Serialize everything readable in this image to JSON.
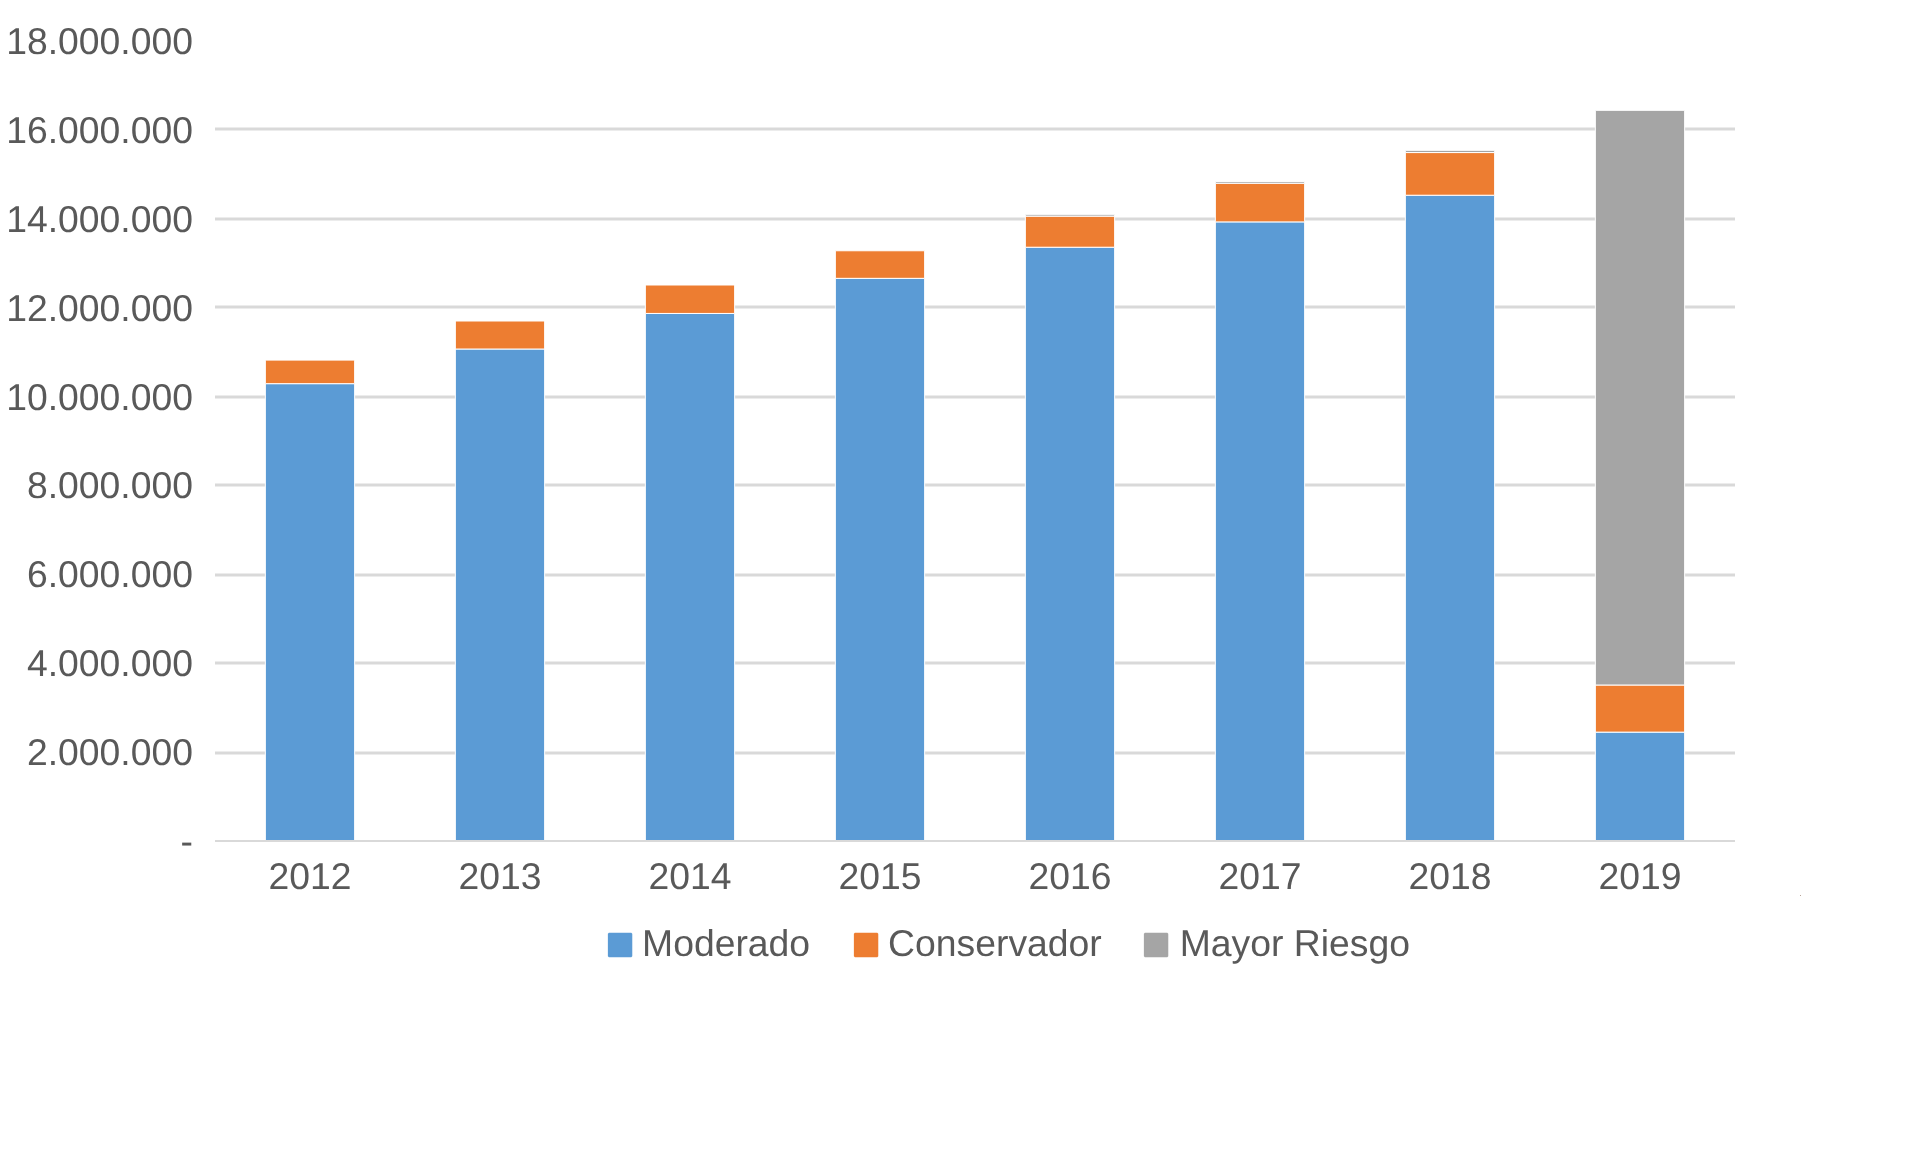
{
  "chart_data": {
    "type": "bar",
    "stacked": true,
    "categories": [
      "2012",
      "2013",
      "2014",
      "2015",
      "2016",
      "2017",
      "2018",
      "2019"
    ],
    "series": [
      {
        "name": "Moderado",
        "color": "#5b9bd5",
        "values": [
          10290000,
          11070000,
          11870000,
          12660000,
          13360000,
          13930000,
          14530000,
          2450000
        ]
      },
      {
        "name": "Conservador",
        "color": "#ed7d31",
        "values": [
          530000,
          630000,
          640000,
          620000,
          700000,
          870000,
          960000,
          1060000
        ]
      },
      {
        "name": "Mayor Riesgo",
        "color": "#a5a5a5",
        "values": [
          null,
          null,
          null,
          null,
          40000,
          40000,
          50000,
          12930000
        ]
      }
    ],
    "ylim": [
      0,
      18000000
    ],
    "yticks": [
      {
        "value": 0,
        "label": "-"
      },
      {
        "value": 2000000,
        "label": "2.000.000"
      },
      {
        "value": 4000000,
        "label": "4.000.000"
      },
      {
        "value": 6000000,
        "label": "6.000.000"
      },
      {
        "value": 8000000,
        "label": "8.000.000"
      },
      {
        "value": 10000000,
        "label": "10.000.000"
      },
      {
        "value": 12000000,
        "label": "12.000.000"
      },
      {
        "value": 14000000,
        "label": "14.000.000"
      },
      {
        "value": 16000000,
        "label": "16.000.000"
      },
      {
        "value": 18000000,
        "label": "18.000.000"
      }
    ],
    "grid": "y",
    "legend": "bottom"
  }
}
